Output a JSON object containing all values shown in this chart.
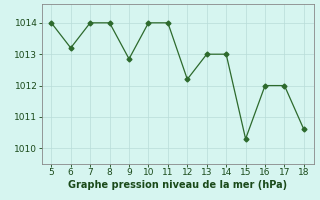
{
  "x": [
    5,
    6,
    7,
    8,
    9,
    10,
    11,
    12,
    13,
    14,
    15,
    16,
    17,
    18
  ],
  "y": [
    1014.0,
    1013.2,
    1014.0,
    1014.0,
    1012.85,
    1014.0,
    1014.0,
    1012.2,
    1013.0,
    1013.0,
    1010.3,
    1012.0,
    1012.0,
    1010.6
  ],
  "line_color": "#2d6a2d",
  "marker": "D",
  "marker_size": 2.5,
  "background_color": "#d6f5f0",
  "grid_color": "#b8dcd8",
  "xlabel": "Graphe pression niveau de la mer (hPa)",
  "xlabel_color": "#1a4a1a",
  "xlabel_fontsize": 7,
  "tick_color": "#1a4a1a",
  "tick_fontsize": 6.5,
  "xlim": [
    4.5,
    18.5
  ],
  "ylim": [
    1009.5,
    1014.6
  ],
  "yticks": [
    1010,
    1011,
    1012,
    1013,
    1014
  ],
  "xticks": [
    5,
    6,
    7,
    8,
    9,
    10,
    11,
    12,
    13,
    14,
    15,
    16,
    17,
    18
  ]
}
